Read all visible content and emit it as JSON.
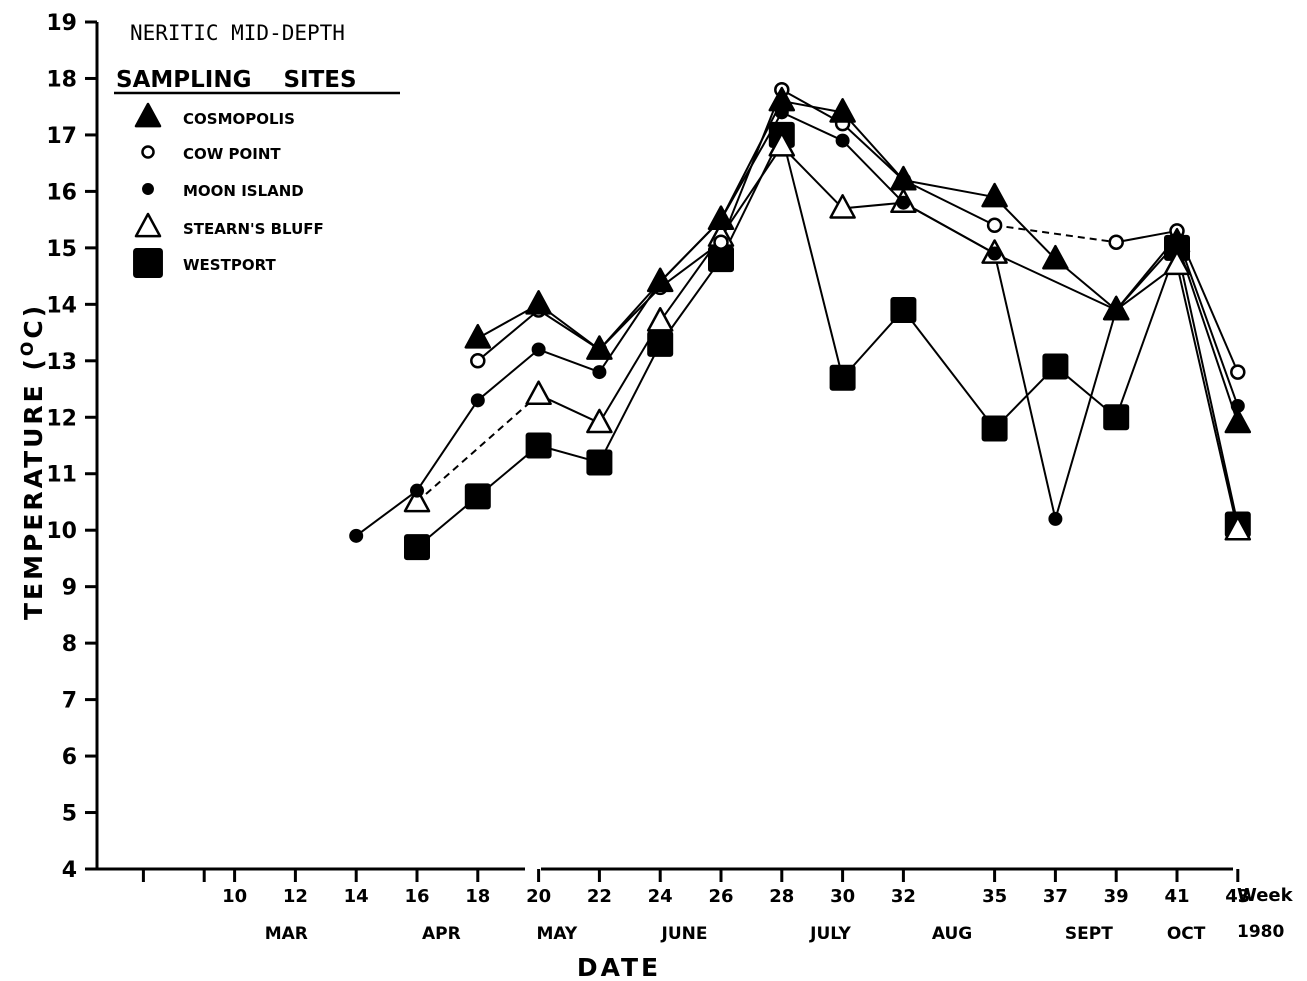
{
  "chart_data": {
    "type": "line",
    "title": "NERITIC MID-DEPTH",
    "legend_title": "SAMPLING    SITES",
    "xlabel": "DATE",
    "ylabel": "TEMPERATURE (°C)",
    "ylabel_main": "TEMPERATURE (",
    "ylabel_unit": "O",
    "ylabel_tail": "C)",
    "x_week_label": "Week",
    "x_year_label": "1980",
    "ylim": [
      4,
      19
    ],
    "xlim": [
      6,
      44
    ],
    "yticks": [
      "4",
      "5",
      "6",
      "7",
      "8",
      "9",
      "10",
      "11",
      "12",
      "13",
      "14",
      "15",
      "16",
      "17",
      "18",
      "19"
    ],
    "xticks": [
      {
        "week": 10,
        "label": "10"
      },
      {
        "week": 12,
        "label": "12"
      },
      {
        "week": 14,
        "label": "14"
      },
      {
        "week": 16,
        "label": "16"
      },
      {
        "week": 18,
        "label": "18"
      },
      {
        "week": 20,
        "label": "20"
      },
      {
        "week": 22,
        "label": "22"
      },
      {
        "week": 24,
        "label": "24"
      },
      {
        "week": 26,
        "label": "26"
      },
      {
        "week": 28,
        "label": "28"
      },
      {
        "week": 30,
        "label": "30"
      },
      {
        "week": 32,
        "label": "32"
      },
      {
        "week": 35,
        "label": "35"
      },
      {
        "week": 37,
        "label": "37"
      },
      {
        "week": 39,
        "label": "39"
      },
      {
        "week": 41,
        "label": "41"
      },
      {
        "week": 43,
        "label": "43"
      }
    ],
    "minor_ticks": [
      7,
      9
    ],
    "months": [
      {
        "label": "MAR",
        "week": 11.7
      },
      {
        "label": "APR",
        "week": 16.8
      },
      {
        "label": "MAY",
        "week": 20.6
      },
      {
        "label": "JUNE",
        "week": 24.8
      },
      {
        "label": "JULY",
        "week": 29.6
      },
      {
        "label": "AUG",
        "week": 33.6
      },
      {
        "label": "SEPT",
        "week": 38.1
      },
      {
        "label": "OCT",
        "week": 41.3
      }
    ],
    "legend_position": "top-left",
    "grid": false,
    "series": [
      {
        "name": "COSMOPOLIS",
        "marker": "triangle-filled",
        "x": [
          18,
          20,
          22,
          24,
          26,
          28,
          30,
          32,
          35,
          37,
          39,
          41,
          43
        ],
        "y": [
          13.4,
          14.0,
          13.2,
          14.4,
          15.5,
          17.6,
          17.4,
          16.2,
          15.9,
          14.8,
          13.9,
          15.1,
          11.9
        ],
        "segment_styles": [
          "solid",
          "solid",
          "solid",
          "solid",
          "solid",
          "solid",
          "solid",
          "solid",
          "solid",
          "solid",
          "solid",
          "solid"
        ]
      },
      {
        "name": "COW POINT",
        "marker": "circle-open",
        "x": [
          18,
          20,
          22,
          24,
          26,
          28,
          30,
          32,
          35,
          39,
          41,
          43
        ],
        "y": [
          13.0,
          13.9,
          13.2,
          14.3,
          15.1,
          17.8,
          17.2,
          16.2,
          15.4,
          15.1,
          15.3,
          12.8
        ],
        "segment_styles": [
          "solid",
          "solid",
          "solid",
          "solid",
          "solid",
          "solid",
          "solid",
          "solid",
          "dashed",
          "solid",
          "solid"
        ]
      },
      {
        "name": "MOON ISLAND",
        "marker": "circle-filled",
        "x": [
          14,
          16,
          18,
          20,
          22,
          24,
          26,
          28,
          30,
          32,
          35,
          37,
          39,
          41,
          43
        ],
        "y": [
          9.9,
          10.7,
          12.3,
          13.2,
          12.8,
          14.4,
          15.5,
          17.4,
          16.9,
          15.8,
          14.9,
          10.2,
          13.9,
          15.2,
          12.2
        ],
        "segment_styles": [
          "solid",
          "solid",
          "solid",
          "solid",
          "solid",
          "solid",
          "solid",
          "solid",
          "solid",
          "solid",
          "solid",
          "solid",
          "solid",
          "solid"
        ]
      },
      {
        "name": "STEARN'S BLUFF",
        "marker": "triangle-open",
        "x": [
          16,
          20,
          22,
          24,
          26,
          28,
          30,
          32,
          35,
          39,
          41,
          43
        ],
        "y": [
          10.5,
          12.4,
          11.9,
          13.7,
          15.2,
          16.8,
          15.7,
          15.8,
          14.9,
          13.9,
          14.7,
          10.0
        ],
        "segment_styles": [
          "dashed",
          "solid",
          "solid",
          "solid",
          "solid",
          "solid",
          "solid",
          "solid",
          "solid",
          "solid",
          "solid"
        ]
      },
      {
        "name": "WESTPORT",
        "marker": "square-filled",
        "x": [
          16,
          18,
          20,
          22,
          24,
          26,
          28,
          30,
          32,
          35,
          37,
          39,
          41,
          43
        ],
        "y": [
          9.7,
          10.6,
          11.5,
          11.2,
          13.3,
          14.8,
          17.0,
          12.7,
          13.9,
          11.8,
          12.9,
          12.0,
          15.0,
          10.1
        ],
        "segment_styles": [
          "solid",
          "solid",
          "solid",
          "solid",
          "solid",
          "solid",
          "solid",
          "solid",
          "solid",
          "solid",
          "solid",
          "solid",
          "solid"
        ]
      }
    ]
  }
}
